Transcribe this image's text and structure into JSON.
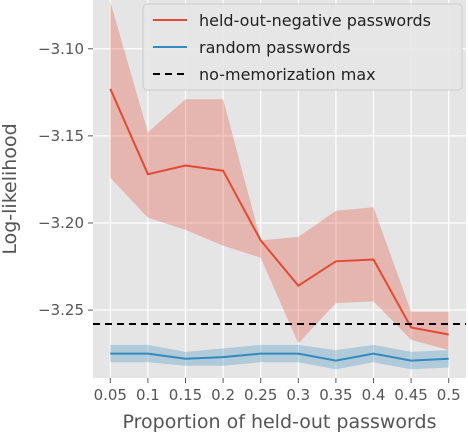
{
  "chart_data": {
    "type": "line",
    "xlabel": "Proportion of held-out passwords",
    "ylabel": "Log-likelihood",
    "x": [
      0.05,
      0.1,
      0.15,
      0.2,
      0.25,
      0.3,
      0.35,
      0.4,
      0.45,
      0.5
    ],
    "x_tick_labels": [
      "0.05",
      "0.1",
      "0.15",
      "0.2",
      "0.25",
      "0.3",
      "0.35",
      "0.4",
      "0.45",
      "0.5"
    ],
    "y_ticks": [
      -3.1,
      -3.15,
      -3.2,
      -3.25
    ],
    "y_tick_labels": [
      "−3.10",
      "−3.15",
      "−3.20",
      "−3.25"
    ],
    "xlim": [
      0.027,
      0.523
    ],
    "ylim": [
      -3.289,
      -3.072
    ],
    "grid": true,
    "legend_position": "top-right",
    "series": [
      {
        "name": "held-out-negative passwords",
        "color": "#e24a33",
        "band_color": "#e24a33",
        "values": [
          -3.123,
          -3.172,
          -3.167,
          -3.17,
          -3.21,
          -3.236,
          -3.222,
          -3.221,
          -3.26,
          -3.264
        ],
        "upper": [
          -3.073,
          -3.148,
          -3.129,
          -3.129,
          -3.21,
          -3.208,
          -3.193,
          -3.191,
          -3.251,
          -3.251
        ],
        "lower": [
          -3.174,
          -3.197,
          -3.204,
          -3.213,
          -3.22,
          -3.269,
          -3.246,
          -3.245,
          -3.267,
          -3.273
        ]
      },
      {
        "name": "random passwords",
        "color": "#348abd",
        "band_color": "#348abd",
        "values": [
          -3.275,
          -3.275,
          -3.278,
          -3.277,
          -3.275,
          -3.275,
          -3.279,
          -3.275,
          -3.279,
          -3.278
        ],
        "upper": [
          -3.27,
          -3.27,
          -3.274,
          -3.272,
          -3.27,
          -3.27,
          -3.273,
          -3.27,
          -3.274,
          -3.273
        ],
        "lower": [
          -3.28,
          -3.28,
          -3.282,
          -3.282,
          -3.28,
          -3.28,
          -3.284,
          -3.28,
          -3.284,
          -3.283
        ]
      }
    ],
    "reference_line": {
      "name": "no-memorization max",
      "y": -3.258,
      "color": "#000000",
      "style": "dashed"
    }
  }
}
